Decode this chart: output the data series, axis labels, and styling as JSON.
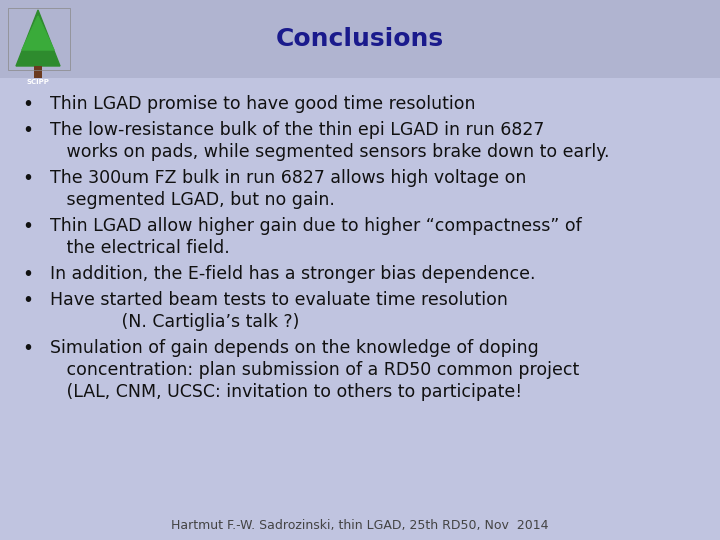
{
  "title": "Conclusions",
  "title_color": "#1a1a8c",
  "title_fontsize": 18,
  "background_color": "#c0c4e0",
  "header_bg_color": "#b0b4d0",
  "bullet_lines": [
    [
      "Thin LGAD promise to have good time resolution"
    ],
    [
      "The low-resistance bulk of the thin epi LGAD in run 6827",
      "   works on pads, while segmented sensors brake down to early."
    ],
    [
      "The 300um FZ bulk in run 6827 allows high voltage on",
      "   segmented LGAD, but no gain."
    ],
    [
      "Thin LGAD allow higher gain due to higher “compactness” of",
      "   the electrical field."
    ],
    [
      "In addition, the E-field has a stronger bias dependence."
    ],
    [
      "Have started beam tests to evaluate time resolution",
      "             (N. Cartiglia’s talk ?)"
    ],
    [
      "Simulation of gain depends on the knowledge of doping",
      "   concentration: plan submission of a RD50 common project",
      "   (LAL, CNM, UCSC: invitation to others to participate!"
    ]
  ],
  "text_color": "#111111",
  "text_fontsize": 12.5,
  "footer": "Hartmut F.-W. Sadrozinski, thin LGAD, 25th RD50, Nov  2014",
  "footer_fontsize": 9,
  "footer_color": "#444444",
  "fig_width": 7.2,
  "fig_height": 5.4,
  "dpi": 100
}
